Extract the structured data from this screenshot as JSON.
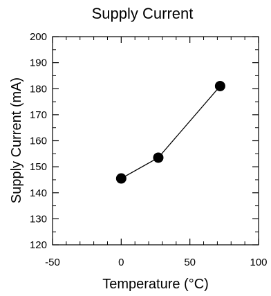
{
  "chart_data": {
    "type": "scatter",
    "title": "Supply Current",
    "xlabel": "Temperature (°C)",
    "ylabel": "Supply Current (mA)",
    "xlim": [
      -50,
      100
    ],
    "ylim": [
      120,
      200
    ],
    "x_ticks": [
      -50,
      0,
      50,
      100
    ],
    "y_ticks": [
      120,
      130,
      140,
      150,
      160,
      170,
      180,
      190,
      200
    ],
    "x_minor_step": 10,
    "y_minor_step": 5,
    "grid": false,
    "series": [
      {
        "x": [
          0,
          27,
          72
        ],
        "y": [
          145.5,
          153.5,
          181
        ],
        "marker": "filled-circle",
        "line": "solid",
        "color": "#000000"
      }
    ]
  }
}
